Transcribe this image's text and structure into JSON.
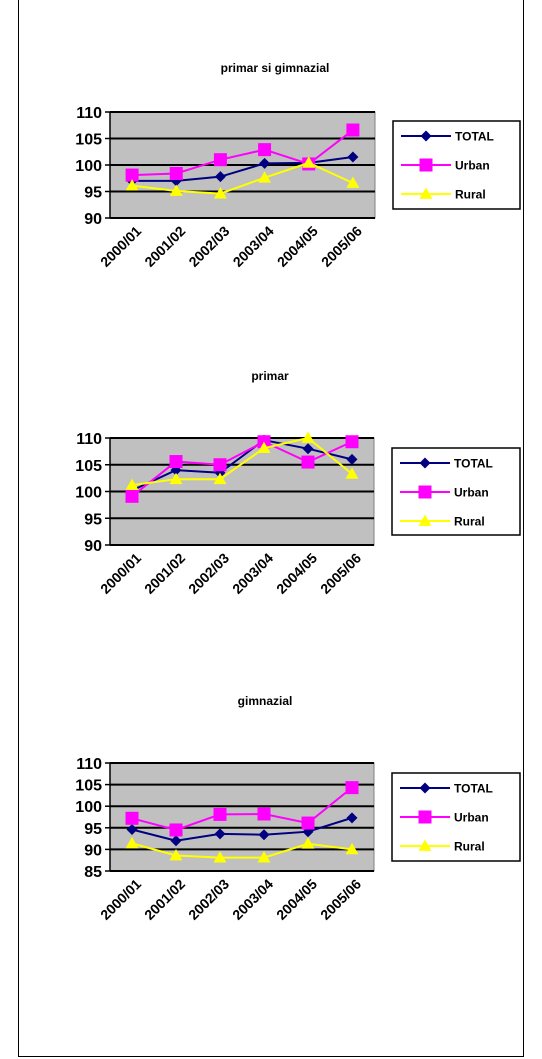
{
  "colors": {
    "plot_bg": "#c0c0c0",
    "TOTAL": "#000080",
    "Urban": "#ff00ff",
    "Rural": "#ffff00"
  },
  "chart_data": [
    {
      "type": "line",
      "title": "primar si gimnazial",
      "categories": [
        "2000/01",
        "2001/02",
        "2002/03",
        "2003/04",
        "2004/05",
        "2005/06"
      ],
      "ylim": [
        90,
        110
      ],
      "yticks": [
        90,
        95,
        100,
        105,
        110
      ],
      "grid": true,
      "legend": "right",
      "series": [
        {
          "name": "TOTAL",
          "marker": "diamond",
          "values": [
            97.0,
            97.0,
            97.8,
            100.3,
            100.4,
            101.5
          ]
        },
        {
          "name": "Urban",
          "marker": "square",
          "values": [
            98.1,
            98.4,
            101.0,
            102.9,
            100.2,
            106.6
          ]
        },
        {
          "name": "Rural",
          "marker": "triangle",
          "values": [
            96.1,
            95.1,
            94.6,
            97.6,
            100.4,
            96.6
          ]
        }
      ]
    },
    {
      "type": "line",
      "title": "primar",
      "categories": [
        "2000/01",
        "2001/02",
        "2002/03",
        "2003/04",
        "2004/05",
        "2005/06"
      ],
      "ylim": [
        90,
        110
      ],
      "yticks": [
        90,
        95,
        100,
        105,
        110
      ],
      "grid": true,
      "legend": "right",
      "series": [
        {
          "name": "TOTAL",
          "marker": "diamond",
          "values": [
            100.2,
            104.0,
            103.5,
            109.6,
            108.0,
            106.0
          ]
        },
        {
          "name": "Urban",
          "marker": "square",
          "values": [
            99.1,
            105.6,
            105.0,
            109.3,
            105.5,
            109.3
          ]
        },
        {
          "name": "Rural",
          "marker": "triangle",
          "values": [
            101.2,
            102.3,
            102.3,
            108.1,
            110.0,
            103.3
          ]
        }
      ]
    },
    {
      "type": "line",
      "title": "gimnazial",
      "categories": [
        "2000/01",
        "2001/02",
        "2002/03",
        "2003/04",
        "2004/05",
        "2005/06"
      ],
      "ylim": [
        85,
        110
      ],
      "yticks": [
        85,
        90,
        95,
        100,
        105,
        110
      ],
      "grid": true,
      "legend": "right",
      "series": [
        {
          "name": "TOTAL",
          "marker": "diamond",
          "values": [
            94.6,
            92.0,
            93.6,
            93.4,
            94.1,
            97.3
          ]
        },
        {
          "name": "Urban",
          "marker": "square",
          "values": [
            97.2,
            94.5,
            98.1,
            98.2,
            96.1,
            104.3
          ]
        },
        {
          "name": "Rural",
          "marker": "triangle",
          "values": [
            91.4,
            88.6,
            88.1,
            88.1,
            91.3,
            90.0
          ]
        }
      ]
    }
  ]
}
